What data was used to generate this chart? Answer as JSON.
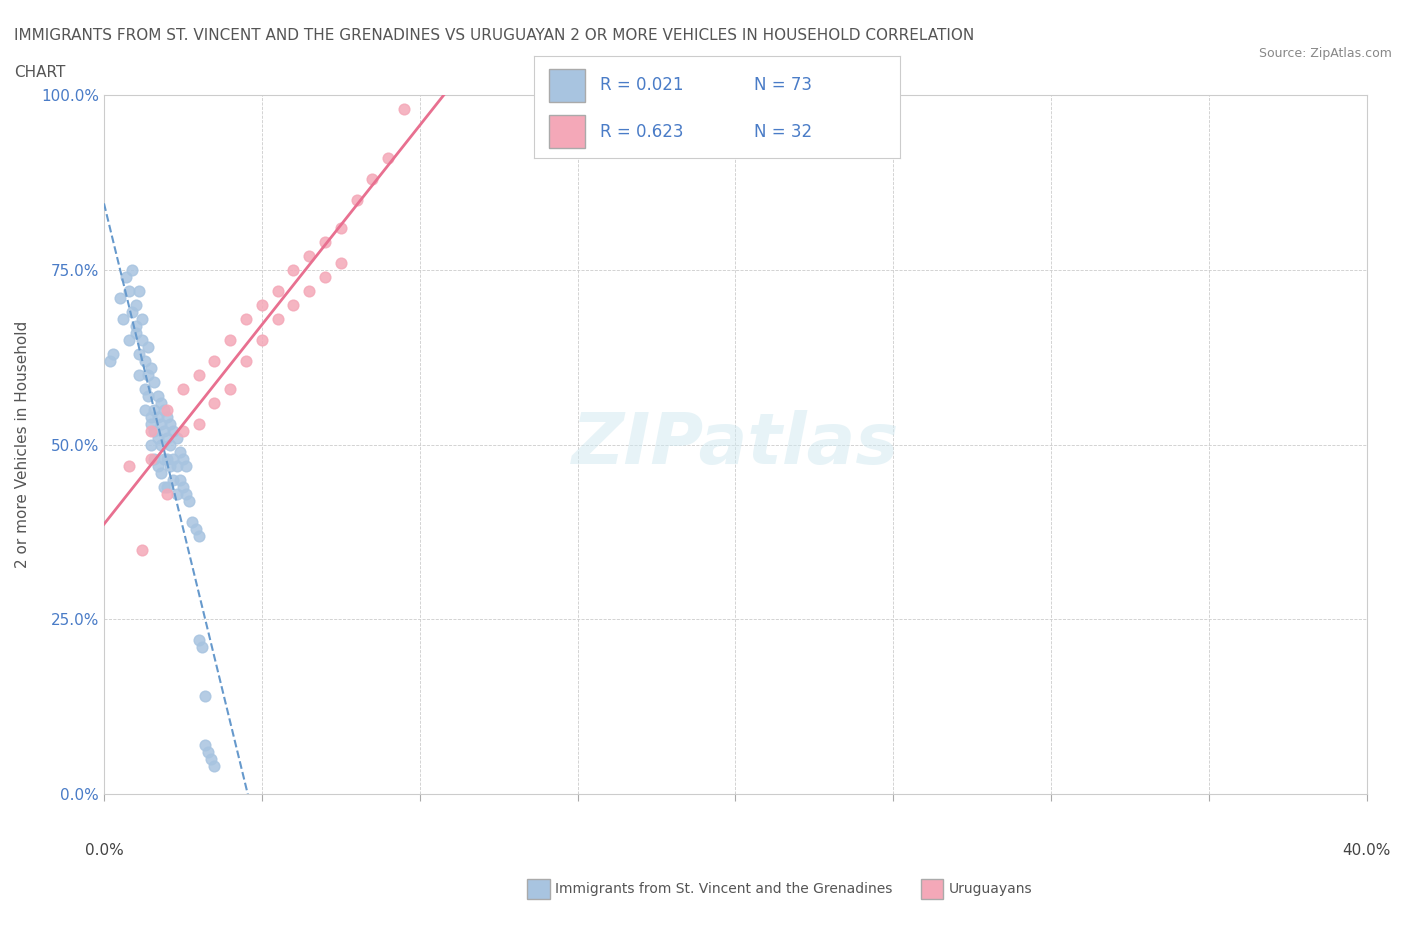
{
  "title_line1": "IMMIGRANTS FROM ST. VINCENT AND THE GRENADINES VS URUGUAYAN 2 OR MORE VEHICLES IN HOUSEHOLD CORRELATION",
  "title_line2": "CHART",
  "source_text": "Source: ZipAtlas.com",
  "ylabel": "2 or more Vehicles in Household",
  "yticks": [
    "0.0%",
    "25.0%",
    "50.0%",
    "75.0%",
    "100.0%"
  ],
  "ytick_vals": [
    0.0,
    25.0,
    50.0,
    75.0,
    100.0
  ],
  "legend_r1": "R = 0.021",
  "legend_n1": "N = 73",
  "legend_r2": "R = 0.623",
  "legend_n2": "N = 32",
  "watermark": "ZIPatlas",
  "blue_color": "#a8c4e0",
  "pink_color": "#f4a8b8",
  "blue_line_color": "#6699cc",
  "pink_line_color": "#e87090",
  "legend_text_color": "#4a7cc7",
  "title_color": "#555555",
  "blue_scatter": [
    [
      0.2,
      62.0
    ],
    [
      0.3,
      63.0
    ],
    [
      0.5,
      71.0
    ],
    [
      0.6,
      68.0
    ],
    [
      0.7,
      74.0
    ],
    [
      0.8,
      72.0
    ],
    [
      0.8,
      65.0
    ],
    [
      0.9,
      69.0
    ],
    [
      0.9,
      75.0
    ],
    [
      1.0,
      67.0
    ],
    [
      1.0,
      66.0
    ],
    [
      1.0,
      70.0
    ],
    [
      1.1,
      72.0
    ],
    [
      1.1,
      63.0
    ],
    [
      1.1,
      60.0
    ],
    [
      1.2,
      65.0
    ],
    [
      1.2,
      68.0
    ],
    [
      1.3,
      62.0
    ],
    [
      1.3,
      58.0
    ],
    [
      1.3,
      55.0
    ],
    [
      1.4,
      64.0
    ],
    [
      1.4,
      60.0
    ],
    [
      1.4,
      57.0
    ],
    [
      1.5,
      61.0
    ],
    [
      1.5,
      54.0
    ],
    [
      1.5,
      53.0
    ],
    [
      1.5,
      50.0
    ],
    [
      1.6,
      59.0
    ],
    [
      1.6,
      55.0
    ],
    [
      1.6,
      52.0
    ],
    [
      1.6,
      48.0
    ],
    [
      1.7,
      57.0
    ],
    [
      1.7,
      54.0
    ],
    [
      1.7,
      51.0
    ],
    [
      1.7,
      47.0
    ],
    [
      1.8,
      56.0
    ],
    [
      1.8,
      53.0
    ],
    [
      1.8,
      50.0
    ],
    [
      1.8,
      46.0
    ],
    [
      1.9,
      55.0
    ],
    [
      1.9,
      52.0
    ],
    [
      1.9,
      48.0
    ],
    [
      1.9,
      44.0
    ],
    [
      2.0,
      54.0
    ],
    [
      2.0,
      51.0
    ],
    [
      2.0,
      48.0
    ],
    [
      2.0,
      44.0
    ],
    [
      2.1,
      53.0
    ],
    [
      2.1,
      50.0
    ],
    [
      2.1,
      47.0
    ],
    [
      2.2,
      52.0
    ],
    [
      2.2,
      48.0
    ],
    [
      2.2,
      45.0
    ],
    [
      2.3,
      51.0
    ],
    [
      2.3,
      47.0
    ],
    [
      2.3,
      43.0
    ],
    [
      2.4,
      49.0
    ],
    [
      2.4,
      45.0
    ],
    [
      2.5,
      48.0
    ],
    [
      2.5,
      44.0
    ],
    [
      2.6,
      47.0
    ],
    [
      2.6,
      43.0
    ],
    [
      2.7,
      42.0
    ],
    [
      2.8,
      39.0
    ],
    [
      2.9,
      38.0
    ],
    [
      3.0,
      37.0
    ],
    [
      3.0,
      22.0
    ],
    [
      3.1,
      21.0
    ],
    [
      3.2,
      14.0
    ],
    [
      3.2,
      7.0
    ],
    [
      3.3,
      6.0
    ],
    [
      3.4,
      5.0
    ],
    [
      3.5,
      4.0
    ]
  ],
  "pink_scatter": [
    [
      0.8,
      47.0
    ],
    [
      1.2,
      35.0
    ],
    [
      1.5,
      52.0
    ],
    [
      1.5,
      48.0
    ],
    [
      2.0,
      55.0
    ],
    [
      2.0,
      43.0
    ],
    [
      2.5,
      58.0
    ],
    [
      2.5,
      52.0
    ],
    [
      3.0,
      60.0
    ],
    [
      3.0,
      53.0
    ],
    [
      3.5,
      62.0
    ],
    [
      3.5,
      56.0
    ],
    [
      4.0,
      65.0
    ],
    [
      4.0,
      58.0
    ],
    [
      4.5,
      68.0
    ],
    [
      4.5,
      62.0
    ],
    [
      5.0,
      70.0
    ],
    [
      5.0,
      65.0
    ],
    [
      5.5,
      72.0
    ],
    [
      5.5,
      68.0
    ],
    [
      6.0,
      75.0
    ],
    [
      6.0,
      70.0
    ],
    [
      6.5,
      77.0
    ],
    [
      6.5,
      72.0
    ],
    [
      7.0,
      79.0
    ],
    [
      7.0,
      74.0
    ],
    [
      7.5,
      81.0
    ],
    [
      7.5,
      76.0
    ],
    [
      8.0,
      85.0
    ],
    [
      8.5,
      88.0
    ],
    [
      9.0,
      91.0
    ],
    [
      9.5,
      98.0
    ]
  ],
  "xmin": 0.0,
  "xmax": 40.0,
  "ymin": 0.0,
  "ymax": 100.0
}
